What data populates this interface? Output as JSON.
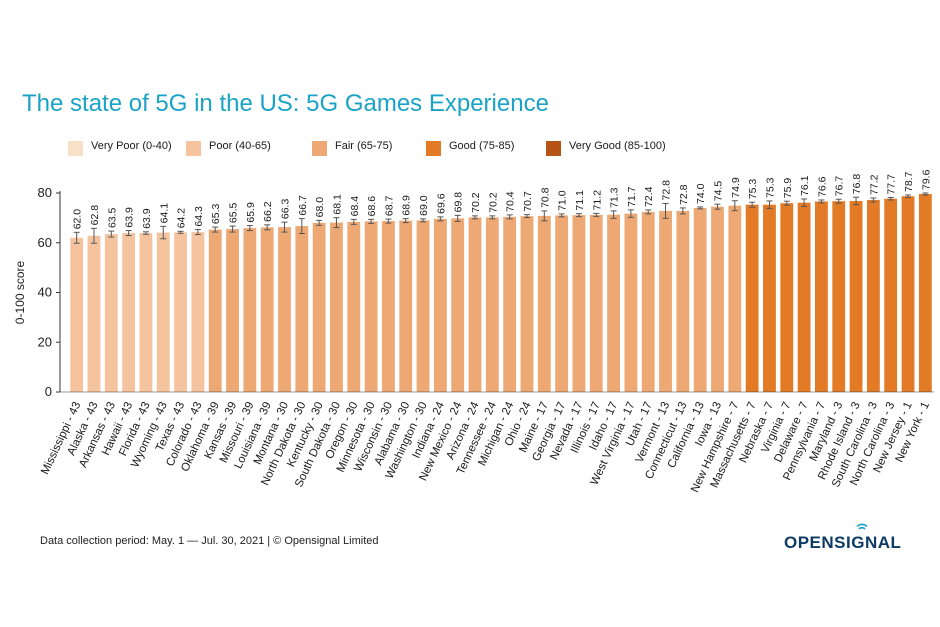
{
  "colors": {
    "title": "#1aa3c6",
    "error_bar": "#555555",
    "axis": "#333333",
    "logo": "#0d3b66"
  },
  "footer": "Data collection period: May. 1 — Jul. 30, 2021 | © Opensignal Limited",
  "logo_text": "OPENSIGNAL",
  "chart_data": {
    "type": "bar",
    "title": "The state of 5G in the US: 5G Games Experience",
    "xlabel": "",
    "ylabel": "0-100 score",
    "ylim": [
      0,
      80
    ],
    "yticks": [
      0,
      20,
      40,
      60,
      80
    ],
    "grid": false,
    "legend_position": "top",
    "legend": [
      {
        "label": "Very Poor (0-40)",
        "color": "#f8dfc8"
      },
      {
        "label": "Poor (40-65)",
        "color": "#f5c49f"
      },
      {
        "label": "Fair (65-75)",
        "color": "#eda873"
      },
      {
        "label": "Good (75-85)",
        "color": "#e27a26"
      },
      {
        "label": "Very Good (85-100)",
        "color": "#b55414"
      }
    ],
    "bars": [
      {
        "label": "Mississippi - 43",
        "value": 62.0,
        "err": 2.2,
        "band": 1
      },
      {
        "label": "Alaska - 43",
        "value": 62.8,
        "err": 3.0,
        "band": 1
      },
      {
        "label": "Arkansas - 43",
        "value": 63.5,
        "err": 1.2,
        "band": 1
      },
      {
        "label": "Hawaii - 43",
        "value": 63.9,
        "err": 1.0,
        "band": 1
      },
      {
        "label": "Florida - 43",
        "value": 63.9,
        "err": 0.5,
        "band": 1
      },
      {
        "label": "Wyoming - 43",
        "value": 64.1,
        "err": 2.5,
        "band": 1
      },
      {
        "label": "Texas - 43",
        "value": 64.2,
        "err": 0.4,
        "band": 1
      },
      {
        "label": "Colorado - 43",
        "value": 64.3,
        "err": 1.0,
        "band": 1
      },
      {
        "label": "Oklahoma - 39",
        "value": 65.3,
        "err": 1.0,
        "band": 2
      },
      {
        "label": "Kansas - 39",
        "value": 65.5,
        "err": 1.2,
        "band": 2
      },
      {
        "label": "Missouri - 39",
        "value": 65.9,
        "err": 1.0,
        "band": 2
      },
      {
        "label": "Louisiana - 39",
        "value": 66.2,
        "err": 1.0,
        "band": 2
      },
      {
        "label": "Montana - 30",
        "value": 66.3,
        "err": 2.0,
        "band": 2
      },
      {
        "label": "North Dakota - 30",
        "value": 66.7,
        "err": 3.0,
        "band": 2
      },
      {
        "label": "Kentucky - 30",
        "value": 68.0,
        "err": 1.0,
        "band": 2
      },
      {
        "label": "South Dakota - 30",
        "value": 68.1,
        "err": 2.0,
        "band": 2
      },
      {
        "label": "Oregon - 30",
        "value": 68.4,
        "err": 1.0,
        "band": 2
      },
      {
        "label": "Minnesota - 30",
        "value": 68.6,
        "err": 0.8,
        "band": 2
      },
      {
        "label": "Wisconsin - 30",
        "value": 68.7,
        "err": 0.8,
        "band": 2
      },
      {
        "label": "Alabama - 30",
        "value": 68.9,
        "err": 0.8,
        "band": 2
      },
      {
        "label": "Washington - 30",
        "value": 69.0,
        "err": 0.6,
        "band": 2
      },
      {
        "label": "Indiana - 24",
        "value": 69.6,
        "err": 0.8,
        "band": 2
      },
      {
        "label": "New Mexico - 24",
        "value": 69.8,
        "err": 1.2,
        "band": 2
      },
      {
        "label": "Arizona - 24",
        "value": 70.2,
        "err": 0.6,
        "band": 2
      },
      {
        "label": "Tennessee - 24",
        "value": 70.2,
        "err": 0.6,
        "band": 2
      },
      {
        "label": "Michigan - 24",
        "value": 70.4,
        "err": 0.8,
        "band": 2
      },
      {
        "label": "Ohio - 24",
        "value": 70.7,
        "err": 0.6,
        "band": 2
      },
      {
        "label": "Maine - 17",
        "value": 70.8,
        "err": 2.0,
        "band": 2
      },
      {
        "label": "Georgia - 17",
        "value": 71.0,
        "err": 0.6,
        "band": 2
      },
      {
        "label": "Nevada - 17",
        "value": 71.1,
        "err": 0.6,
        "band": 2
      },
      {
        "label": "Illinois - 17",
        "value": 71.2,
        "err": 0.6,
        "band": 2
      },
      {
        "label": "Idaho - 17",
        "value": 71.3,
        "err": 1.5,
        "band": 2
      },
      {
        "label": "West Virginia - 17",
        "value": 71.7,
        "err": 1.5,
        "band": 2
      },
      {
        "label": "Utah - 17",
        "value": 72.4,
        "err": 0.8,
        "band": 2
      },
      {
        "label": "Vermont - 13",
        "value": 72.8,
        "err": 3.0,
        "band": 2
      },
      {
        "label": "Connecticut - 13",
        "value": 72.8,
        "err": 1.2,
        "band": 2
      },
      {
        "label": "California - 13",
        "value": 74.0,
        "err": 0.4,
        "band": 2
      },
      {
        "label": "Iowa - 13",
        "value": 74.5,
        "err": 1.0,
        "band": 2
      },
      {
        "label": "New Hampshire - 7",
        "value": 74.9,
        "err": 2.0,
        "band": 2
      },
      {
        "label": "Massachusetts - 7",
        "value": 75.3,
        "err": 1.0,
        "band": 3
      },
      {
        "label": "Nebraska - 7",
        "value": 75.3,
        "err": 1.5,
        "band": 3
      },
      {
        "label": "Virginia - 7",
        "value": 75.9,
        "err": 0.8,
        "band": 3
      },
      {
        "label": "Delaware - 7",
        "value": 76.1,
        "err": 1.5,
        "band": 3
      },
      {
        "label": "Pennsylvania - 7",
        "value": 76.6,
        "err": 0.6,
        "band": 3
      },
      {
        "label": "Maryland - 3",
        "value": 76.7,
        "err": 0.8,
        "band": 3
      },
      {
        "label": "Rhode Island - 3",
        "value": 76.8,
        "err": 1.5,
        "band": 3
      },
      {
        "label": "South Carolina - 3",
        "value": 77.2,
        "err": 0.8,
        "band": 3
      },
      {
        "label": "North Carolina - 3",
        "value": 77.7,
        "err": 0.5,
        "band": 3
      },
      {
        "label": "New Jersey - 1",
        "value": 78.7,
        "err": 0.5,
        "band": 3
      },
      {
        "label": "New York - 1",
        "value": 79.6,
        "err": 0.4,
        "band": 3
      }
    ]
  }
}
